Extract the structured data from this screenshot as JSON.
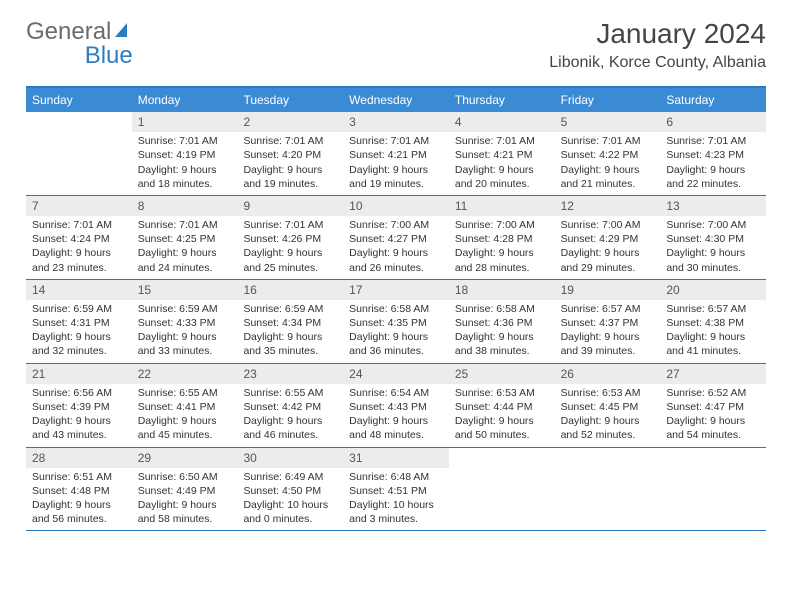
{
  "brand": {
    "part1": "General",
    "part2": "Blue"
  },
  "title": "January 2024",
  "location": "Libonik, Korce County, Albania",
  "colors": {
    "header_bg": "#3b8bd4",
    "border": "#2d7cc2",
    "daynum_bg": "#ececec",
    "text": "#333333"
  },
  "day_names": [
    "Sunday",
    "Monday",
    "Tuesday",
    "Wednesday",
    "Thursday",
    "Friday",
    "Saturday"
  ],
  "weeks": [
    [
      null,
      {
        "n": "1",
        "sr": "7:01 AM",
        "ss": "4:19 PM",
        "dl": "9 hours and 18 minutes."
      },
      {
        "n": "2",
        "sr": "7:01 AM",
        "ss": "4:20 PM",
        "dl": "9 hours and 19 minutes."
      },
      {
        "n": "3",
        "sr": "7:01 AM",
        "ss": "4:21 PM",
        "dl": "9 hours and 19 minutes."
      },
      {
        "n": "4",
        "sr": "7:01 AM",
        "ss": "4:21 PM",
        "dl": "9 hours and 20 minutes."
      },
      {
        "n": "5",
        "sr": "7:01 AM",
        "ss": "4:22 PM",
        "dl": "9 hours and 21 minutes."
      },
      {
        "n": "6",
        "sr": "7:01 AM",
        "ss": "4:23 PM",
        "dl": "9 hours and 22 minutes."
      }
    ],
    [
      {
        "n": "7",
        "sr": "7:01 AM",
        "ss": "4:24 PM",
        "dl": "9 hours and 23 minutes."
      },
      {
        "n": "8",
        "sr": "7:01 AM",
        "ss": "4:25 PM",
        "dl": "9 hours and 24 minutes."
      },
      {
        "n": "9",
        "sr": "7:01 AM",
        "ss": "4:26 PM",
        "dl": "9 hours and 25 minutes."
      },
      {
        "n": "10",
        "sr": "7:00 AM",
        "ss": "4:27 PM",
        "dl": "9 hours and 26 minutes."
      },
      {
        "n": "11",
        "sr": "7:00 AM",
        "ss": "4:28 PM",
        "dl": "9 hours and 28 minutes."
      },
      {
        "n": "12",
        "sr": "7:00 AM",
        "ss": "4:29 PM",
        "dl": "9 hours and 29 minutes."
      },
      {
        "n": "13",
        "sr": "7:00 AM",
        "ss": "4:30 PM",
        "dl": "9 hours and 30 minutes."
      }
    ],
    [
      {
        "n": "14",
        "sr": "6:59 AM",
        "ss": "4:31 PM",
        "dl": "9 hours and 32 minutes."
      },
      {
        "n": "15",
        "sr": "6:59 AM",
        "ss": "4:33 PM",
        "dl": "9 hours and 33 minutes."
      },
      {
        "n": "16",
        "sr": "6:59 AM",
        "ss": "4:34 PM",
        "dl": "9 hours and 35 minutes."
      },
      {
        "n": "17",
        "sr": "6:58 AM",
        "ss": "4:35 PM",
        "dl": "9 hours and 36 minutes."
      },
      {
        "n": "18",
        "sr": "6:58 AM",
        "ss": "4:36 PM",
        "dl": "9 hours and 38 minutes."
      },
      {
        "n": "19",
        "sr": "6:57 AM",
        "ss": "4:37 PM",
        "dl": "9 hours and 39 minutes."
      },
      {
        "n": "20",
        "sr": "6:57 AM",
        "ss": "4:38 PM",
        "dl": "9 hours and 41 minutes."
      }
    ],
    [
      {
        "n": "21",
        "sr": "6:56 AM",
        "ss": "4:39 PM",
        "dl": "9 hours and 43 minutes."
      },
      {
        "n": "22",
        "sr": "6:55 AM",
        "ss": "4:41 PM",
        "dl": "9 hours and 45 minutes."
      },
      {
        "n": "23",
        "sr": "6:55 AM",
        "ss": "4:42 PM",
        "dl": "9 hours and 46 minutes."
      },
      {
        "n": "24",
        "sr": "6:54 AM",
        "ss": "4:43 PM",
        "dl": "9 hours and 48 minutes."
      },
      {
        "n": "25",
        "sr": "6:53 AM",
        "ss": "4:44 PM",
        "dl": "9 hours and 50 minutes."
      },
      {
        "n": "26",
        "sr": "6:53 AM",
        "ss": "4:45 PM",
        "dl": "9 hours and 52 minutes."
      },
      {
        "n": "27",
        "sr": "6:52 AM",
        "ss": "4:47 PM",
        "dl": "9 hours and 54 minutes."
      }
    ],
    [
      {
        "n": "28",
        "sr": "6:51 AM",
        "ss": "4:48 PM",
        "dl": "9 hours and 56 minutes."
      },
      {
        "n": "29",
        "sr": "6:50 AM",
        "ss": "4:49 PM",
        "dl": "9 hours and 58 minutes."
      },
      {
        "n": "30",
        "sr": "6:49 AM",
        "ss": "4:50 PM",
        "dl": "10 hours and 0 minutes."
      },
      {
        "n": "31",
        "sr": "6:48 AM",
        "ss": "4:51 PM",
        "dl": "10 hours and 3 minutes."
      },
      null,
      null,
      null
    ]
  ],
  "labels": {
    "sunrise": "Sunrise:",
    "sunset": "Sunset:",
    "daylight": "Daylight:"
  }
}
